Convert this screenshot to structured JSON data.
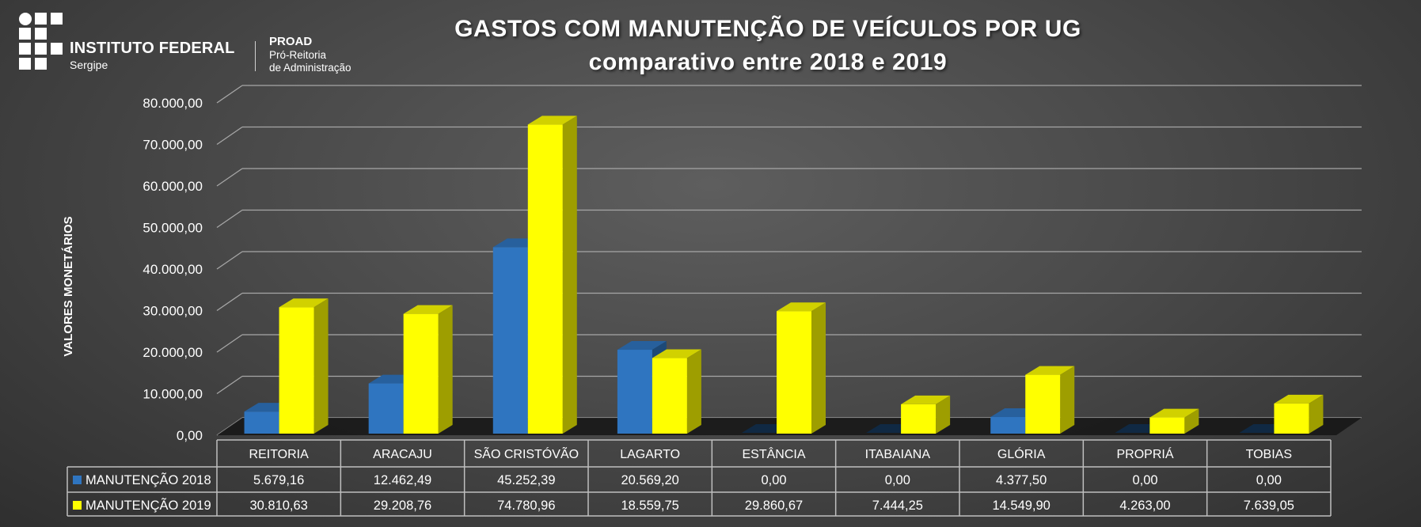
{
  "logo": {
    "org_name": "INSTITUTO FEDERAL",
    "org_sub": "Sergipe",
    "unit": "PROAD",
    "unit_line1": "Pró-Reitoria",
    "unit_line2": "de Administração"
  },
  "colors": {
    "series_2018": "#2f75c0",
    "series_2019": "#ffff00",
    "gridline": "#a6a6a6",
    "table_border": "#bfbfbf"
  },
  "chart_data": {
    "type": "bar",
    "title": "GASTOS COM MANUTENÇÃO DE VEÍCULOS POR UG",
    "subtitle": "comparativo entre 2018 e 2019",
    "ylabel": "VALORES MONETÁRIOS",
    "xlabel": "",
    "ylim": [
      0,
      80000
    ],
    "y_ticks": [
      0,
      10000,
      20000,
      30000,
      40000,
      50000,
      60000,
      70000,
      80000
    ],
    "y_tick_labels": [
      "0,00",
      "10.000,00",
      "20.000,00",
      "30.000,00",
      "40.000,00",
      "50.000,00",
      "60.000,00",
      "70.000,00",
      "80.000,00"
    ],
    "grid": true,
    "legend": "data-table",
    "categories": [
      "REITORIA",
      "ARACAJU",
      "SÃO CRISTÓVÃO",
      "LAGARTO",
      "ESTÂNCIA",
      "ITABAIANA",
      "GLÓRIA",
      "PROPRIÁ",
      "TOBIAS"
    ],
    "series": [
      {
        "name": "MANUTENÇÃO 2018",
        "values": [
          5679.16,
          12462.49,
          45252.39,
          20569.2,
          0,
          0,
          4377.5,
          0,
          0
        ],
        "labels": [
          "5.679,16",
          "12.462,49",
          "45.252,39",
          "20.569,20",
          "0,00",
          "0,00",
          "4.377,50",
          "0,00",
          "0,00"
        ]
      },
      {
        "name": "MANUTENÇÃO 2019",
        "values": [
          30810.63,
          29208.76,
          74780.96,
          18559.75,
          29860.67,
          7444.25,
          14549.9,
          4263.0,
          7639.05
        ],
        "labels": [
          "30.810,63",
          "29.208,76",
          "74.780,96",
          "18.559,75",
          "29.860,67",
          "7.444,25",
          "14.549,90",
          "4.263,00",
          "7.639,05"
        ]
      }
    ]
  }
}
